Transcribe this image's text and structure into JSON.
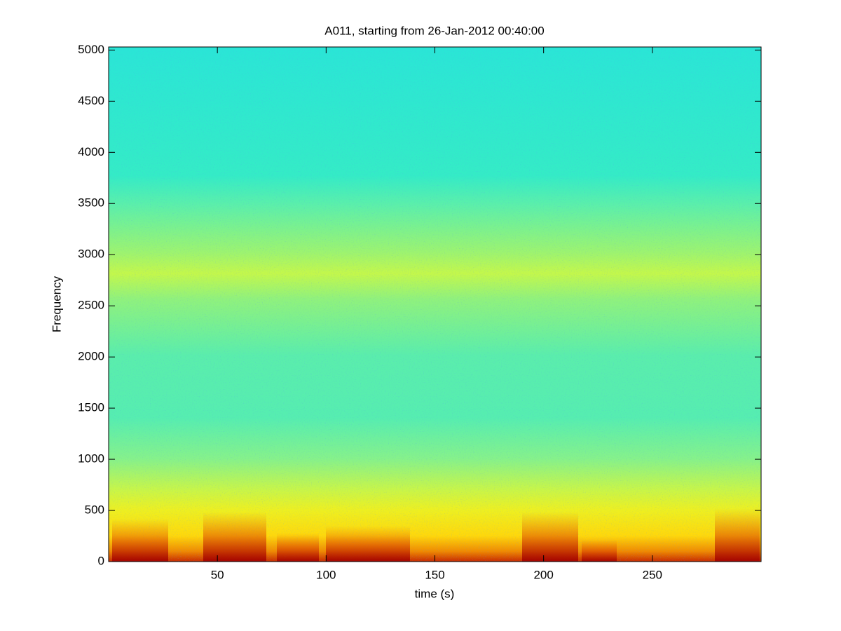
{
  "chart_data": {
    "type": "spectrogram",
    "title": "A011, starting from 26-Jan-2012 00:40:00",
    "x_label": "time (s)",
    "y_label": "Frequency",
    "xlim": [
      0,
      300
    ],
    "xticks": [
      50,
      100,
      150,
      200,
      250
    ],
    "ylim": [
      0,
      5030
    ],
    "yticks": [
      0,
      500,
      1000,
      1500,
      2000,
      2500,
      3000,
      3500,
      4000,
      4500,
      5000
    ],
    "colormap": "jet"
  }
}
